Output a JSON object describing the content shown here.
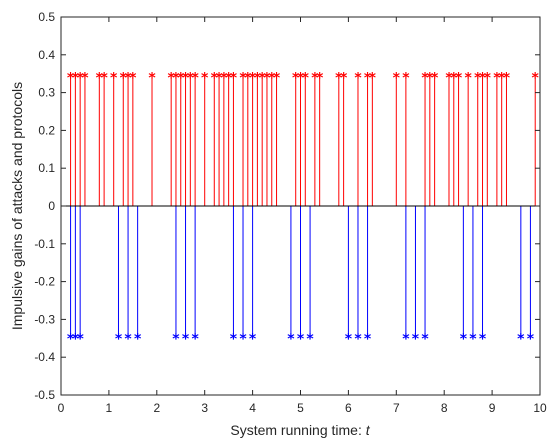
{
  "chart_data": {
    "type": "stem",
    "xlabel": "System running time: ",
    "xlabel_var": "t",
    "ylabel": "Impulsive gains of attacks and protocols",
    "xlim": [
      0,
      10
    ],
    "ylim": [
      -0.5,
      0.5
    ],
    "xticks": [
      "0",
      "1",
      "2",
      "3",
      "4",
      "5",
      "6",
      "7",
      "8",
      "9",
      "10"
    ],
    "yticks": [
      "-0.5",
      "-0.4",
      "-0.3",
      "-0.2",
      "-0.1",
      "0",
      "0.1",
      "0.2",
      "0.3",
      "0.4",
      "0.5"
    ],
    "grid": false,
    "series": [
      {
        "color": "#ff0000",
        "marker": "*",
        "value": 0.34,
        "x": [
          0.2,
          0.3,
          0.4,
          0.5,
          0.8,
          0.9,
          1.1,
          1.3,
          1.4,
          1.5,
          1.9,
          2.3,
          2.4,
          2.5,
          2.6,
          2.7,
          2.8,
          3.0,
          3.2,
          3.3,
          3.4,
          3.5,
          3.6,
          3.8,
          3.9,
          4.0,
          4.1,
          4.2,
          4.3,
          4.4,
          4.5,
          4.9,
          5.0,
          5.1,
          5.3,
          5.4,
          5.8,
          5.9,
          6.2,
          6.4,
          6.5,
          7.0,
          7.2,
          7.6,
          7.7,
          7.8,
          8.1,
          8.2,
          8.3,
          8.5,
          8.7,
          8.8,
          8.9,
          9.1,
          9.2,
          9.3,
          9.9
        ]
      },
      {
        "color": "#0000ff",
        "marker": "*",
        "value": -0.35,
        "x": [
          0.2,
          0.3,
          0.4,
          1.2,
          1.4,
          1.6,
          2.4,
          2.6,
          2.8,
          3.6,
          3.8,
          4.0,
          4.8,
          5.0,
          5.2,
          6.0,
          6.2,
          6.4,
          7.2,
          7.4,
          7.6,
          8.4,
          8.6,
          8.8,
          9.6,
          9.8
        ]
      }
    ]
  }
}
